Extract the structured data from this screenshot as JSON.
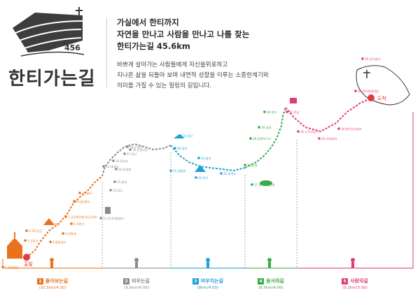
{
  "header": {
    "logo_number": "456",
    "logo_title": "한티가는길",
    "headline": [
      "가실에서 한티까지",
      "자연을 만나고 사람을 만나고 나를 찾는",
      "한티가는길 45.6km"
    ],
    "body": [
      "바쁘게 살아가는 사람들에게 자신을위로하고",
      "지나온 삶을 되돌아 보며 내면적 성찰을 이루는 소중한계기와",
      "의미를 가질 수 있는 힐링의 길입니다."
    ]
  },
  "route": {
    "start_label": "출발",
    "end_label": "도착",
    "stops": [
      {
        "label": "1.가실성당",
        "color": "#e8731f"
      },
      {
        "label": "2.학도장군",
        "color": "#e8731f"
      },
      {
        "label": "3.성당산",
        "color": "#e8731f"
      },
      {
        "label": "4.돌탑쉼터",
        "color": "#e8731f"
      },
      {
        "label": "5.연화대",
        "color": "#e8731f"
      },
      {
        "label": "6.석문산",
        "color": "#e8731f"
      },
      {
        "label": "7.금무봉산봉사(공사자)",
        "color": "#e8731f"
      },
      {
        "label": "8.고리",
        "color": "#e8731f"
      },
      {
        "label": "9.임진쉼터",
        "color": "#e8731f"
      },
      {
        "label": "10.쉼터",
        "color": "#e8731f"
      },
      {
        "label": "11.안나마을쉼터",
        "color": "#8a8a8a"
      },
      {
        "label": "12.임도",
        "color": "#8a8a8a"
      },
      {
        "label": "13.내자암",
        "color": "#8a8a8a"
      },
      {
        "label": "14.헌새봉",
        "color": "#8a8a8a"
      },
      {
        "label": "15.탑터",
        "color": "#8a8a8a"
      },
      {
        "label": "16.장성리",
        "color": "#8a8a8a"
      },
      {
        "label": "17.달산",
        "color": "#8a8a8a"
      },
      {
        "label": "18.신성리",
        "color": "#8a8a8a"
      },
      {
        "label": "19.신성리관",
        "color": "#8a8a8a"
      },
      {
        "label": "20.정자",
        "color": "#1f9fd6"
      },
      {
        "label": "21.삼림관",
        "color": "#1f9fd6"
      },
      {
        "label": "22.광산",
        "color": "#1f9fd6"
      },
      {
        "label": "23.쉼터",
        "color": "#1f9fd6"
      },
      {
        "label": "24.뒷산",
        "color": "#1f9fd6"
      },
      {
        "label": "25.휴게소",
        "color": "#1f9fd6"
      },
      {
        "label": "26.동명",
        "color": "#3aaa4a"
      },
      {
        "label": "27.동명수변공원",
        "color": "#3aaa4a"
      },
      {
        "label": "28.동명저수지",
        "color": "#3aaa4a"
      },
      {
        "label": "29.송림",
        "color": "#3aaa4a"
      },
      {
        "label": "30.정자",
        "color": "#3aaa4a"
      },
      {
        "label": "31.진남",
        "color": "#e23b6b"
      },
      {
        "label": "32.도덕산입구",
        "color": "#e23b6b"
      },
      {
        "label": "33.가야성지",
        "color": "#e23b6b"
      },
      {
        "label": "34.한티순교성지",
        "color": "#e23b6b"
      },
      {
        "label": "35.응기념비",
        "color": "#e23b6b"
      },
      {
        "label": "36.한티피정의집",
        "color": "#e23b6b"
      }
    ]
  },
  "sections": [
    {
      "num": "1",
      "name": "돌아보는길",
      "distance": "(10.5km/4:30)",
      "color": "#e8731f"
    },
    {
      "num": "2",
      "name": "비우는길",
      "distance": "(9.5km/4:00)",
      "color": "#8a8a8a"
    },
    {
      "num": "3",
      "name": "버우치는길",
      "distance": "(8km/4:00)",
      "color": "#1f9fd6"
    },
    {
      "num": "4",
      "name": "용서의길",
      "distance": "(8.5km/4:00)",
      "color": "#3aaa4a"
    },
    {
      "num": "5",
      "name": "사랑의길",
      "distance": "(9.1km/3:30)",
      "color": "#e23b6b"
    }
  ]
}
